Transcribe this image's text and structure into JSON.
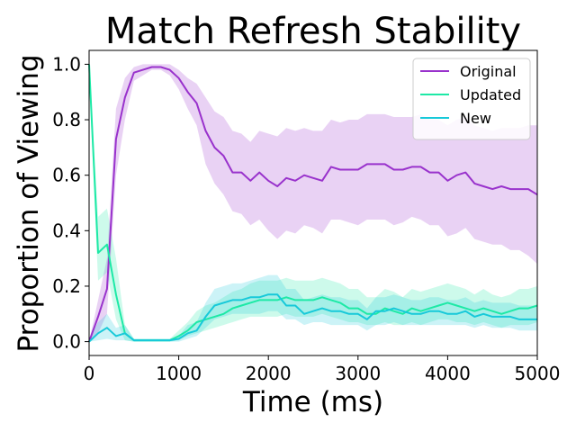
{
  "chart_data": {
    "type": "line",
    "title": "Match Refresh Stability",
    "xlabel": "Time (ms)",
    "ylabel": "Proportion of Viewing",
    "xlim": [
      0,
      5000
    ],
    "ylim": [
      -0.05,
      1.05
    ],
    "xticks": [
      0,
      1000,
      2000,
      3000,
      4000,
      5000
    ],
    "yticks": [
      0.0,
      0.2,
      0.4,
      0.6,
      0.8,
      1.0
    ],
    "xtick_labels": [
      "0",
      "1000",
      "2000",
      "3000",
      "4000",
      "5000"
    ],
    "ytick_labels": [
      "0.0",
      "0.2",
      "0.4",
      "0.6",
      "0.8",
      "1.0"
    ],
    "legend_position": "top-right",
    "grid": false,
    "shaded_band": "confidence interval around each series",
    "x": [
      0,
      100,
      200,
      300,
      400,
      500,
      600,
      700,
      800,
      900,
      1000,
      1100,
      1200,
      1300,
      1400,
      1500,
      1600,
      1700,
      1800,
      1900,
      2000,
      2100,
      2200,
      2300,
      2400,
      2500,
      2600,
      2700,
      2800,
      2900,
      3000,
      3100,
      3200,
      3300,
      3400,
      3500,
      3600,
      3700,
      3800,
      3900,
      4000,
      4100,
      4200,
      4300,
      4400,
      4500,
      4600,
      4700,
      4800,
      4900,
      5000
    ],
    "series": [
      {
        "name": "Original",
        "color": "#9932CC",
        "values": [
          0.0,
          0.09,
          0.19,
          0.73,
          0.88,
          0.97,
          0.98,
          0.99,
          0.99,
          0.98,
          0.95,
          0.9,
          0.86,
          0.76,
          0.7,
          0.67,
          0.61,
          0.61,
          0.58,
          0.61,
          0.58,
          0.56,
          0.59,
          0.58,
          0.6,
          0.59,
          0.58,
          0.63,
          0.62,
          0.62,
          0.62,
          0.64,
          0.64,
          0.64,
          0.62,
          0.62,
          0.63,
          0.63,
          0.61,
          0.61,
          0.58,
          0.6,
          0.61,
          0.57,
          0.56,
          0.55,
          0.56,
          0.55,
          0.55,
          0.55,
          0.53
        ],
        "lower": [
          0.0,
          0.03,
          0.1,
          0.6,
          0.8,
          0.94,
          0.96,
          0.98,
          0.98,
          0.96,
          0.91,
          0.84,
          0.78,
          0.64,
          0.57,
          0.53,
          0.47,
          0.46,
          0.42,
          0.44,
          0.4,
          0.37,
          0.4,
          0.39,
          0.42,
          0.41,
          0.39,
          0.44,
          0.44,
          0.43,
          0.42,
          0.44,
          0.44,
          0.44,
          0.42,
          0.43,
          0.45,
          0.44,
          0.42,
          0.42,
          0.38,
          0.39,
          0.41,
          0.37,
          0.36,
          0.35,
          0.35,
          0.33,
          0.33,
          0.31,
          0.28
        ],
        "upper": [
          0.0,
          0.15,
          0.3,
          0.84,
          0.95,
          0.99,
          1.0,
          1.0,
          1.0,
          1.0,
          0.98,
          0.95,
          0.93,
          0.88,
          0.83,
          0.81,
          0.76,
          0.75,
          0.72,
          0.76,
          0.75,
          0.74,
          0.77,
          0.76,
          0.77,
          0.76,
          0.76,
          0.8,
          0.79,
          0.8,
          0.8,
          0.82,
          0.82,
          0.82,
          0.81,
          0.81,
          0.81,
          0.82,
          0.8,
          0.8,
          0.78,
          0.8,
          0.81,
          0.78,
          0.77,
          0.76,
          0.77,
          0.77,
          0.77,
          0.78,
          0.78
        ]
      },
      {
        "name": "Updated",
        "color": "#1DE9A6",
        "values": [
          1.0,
          0.32,
          0.35,
          0.17,
          0.03,
          0.005,
          0.005,
          0.005,
          0.005,
          0.005,
          0.02,
          0.04,
          0.07,
          0.08,
          0.09,
          0.1,
          0.12,
          0.13,
          0.14,
          0.15,
          0.15,
          0.15,
          0.16,
          0.15,
          0.15,
          0.15,
          0.16,
          0.15,
          0.14,
          0.12,
          0.12,
          0.1,
          0.1,
          0.12,
          0.11,
          0.1,
          0.12,
          0.11,
          0.12,
          0.13,
          0.14,
          0.13,
          0.12,
          0.11,
          0.12,
          0.11,
          0.1,
          0.11,
          0.12,
          0.12,
          0.13
        ],
        "lower": [
          0.94,
          0.22,
          0.25,
          0.08,
          0.005,
          0.0,
          0.0,
          0.0,
          0.0,
          0.0,
          0.005,
          0.02,
          0.03,
          0.04,
          0.05,
          0.06,
          0.07,
          0.08,
          0.09,
          0.09,
          0.09,
          0.09,
          0.1,
          0.09,
          0.09,
          0.09,
          0.1,
          0.09,
          0.08,
          0.07,
          0.07,
          0.06,
          0.06,
          0.07,
          0.06,
          0.06,
          0.07,
          0.06,
          0.07,
          0.08,
          0.08,
          0.07,
          0.07,
          0.06,
          0.07,
          0.06,
          0.05,
          0.06,
          0.06,
          0.06,
          0.07
        ],
        "upper": [
          1.0,
          0.45,
          0.48,
          0.3,
          0.06,
          0.01,
          0.01,
          0.01,
          0.01,
          0.01,
          0.04,
          0.07,
          0.11,
          0.13,
          0.14,
          0.16,
          0.18,
          0.19,
          0.21,
          0.22,
          0.22,
          0.22,
          0.23,
          0.22,
          0.22,
          0.22,
          0.23,
          0.22,
          0.21,
          0.19,
          0.19,
          0.16,
          0.16,
          0.19,
          0.18,
          0.16,
          0.19,
          0.18,
          0.19,
          0.2,
          0.21,
          0.2,
          0.19,
          0.17,
          0.19,
          0.17,
          0.16,
          0.17,
          0.19,
          0.19,
          0.2
        ]
      },
      {
        "name": "New",
        "color": "#17C9D9",
        "values": [
          0.0,
          0.03,
          0.05,
          0.02,
          0.03,
          0.005,
          0.005,
          0.005,
          0.005,
          0.005,
          0.01,
          0.03,
          0.04,
          0.09,
          0.13,
          0.14,
          0.15,
          0.15,
          0.16,
          0.16,
          0.17,
          0.17,
          0.13,
          0.13,
          0.1,
          0.11,
          0.12,
          0.11,
          0.11,
          0.1,
          0.1,
          0.08,
          0.11,
          0.11,
          0.12,
          0.11,
          0.1,
          0.1,
          0.11,
          0.11,
          0.1,
          0.1,
          0.11,
          0.09,
          0.1,
          0.09,
          0.09,
          0.09,
          0.08,
          0.08,
          0.08
        ],
        "lower": [
          0.0,
          0.005,
          0.01,
          0.005,
          0.005,
          0.0,
          0.0,
          0.0,
          0.0,
          0.0,
          0.0,
          0.01,
          0.02,
          0.05,
          0.08,
          0.09,
          0.1,
          0.1,
          0.1,
          0.1,
          0.11,
          0.11,
          0.08,
          0.08,
          0.06,
          0.07,
          0.07,
          0.06,
          0.06,
          0.06,
          0.06,
          0.04,
          0.06,
          0.06,
          0.07,
          0.06,
          0.06,
          0.06,
          0.06,
          0.06,
          0.06,
          0.06,
          0.06,
          0.05,
          0.06,
          0.05,
          0.05,
          0.05,
          0.04,
          0.04,
          0.04
        ],
        "upper": [
          0.01,
          0.07,
          0.1,
          0.05,
          0.06,
          0.01,
          0.01,
          0.01,
          0.01,
          0.01,
          0.02,
          0.06,
          0.07,
          0.14,
          0.19,
          0.2,
          0.21,
          0.21,
          0.22,
          0.23,
          0.24,
          0.24,
          0.19,
          0.19,
          0.15,
          0.16,
          0.17,
          0.16,
          0.16,
          0.15,
          0.15,
          0.12,
          0.16,
          0.16,
          0.17,
          0.16,
          0.15,
          0.15,
          0.16,
          0.16,
          0.15,
          0.15,
          0.16,
          0.14,
          0.15,
          0.14,
          0.14,
          0.14,
          0.13,
          0.13,
          0.13
        ]
      }
    ]
  }
}
